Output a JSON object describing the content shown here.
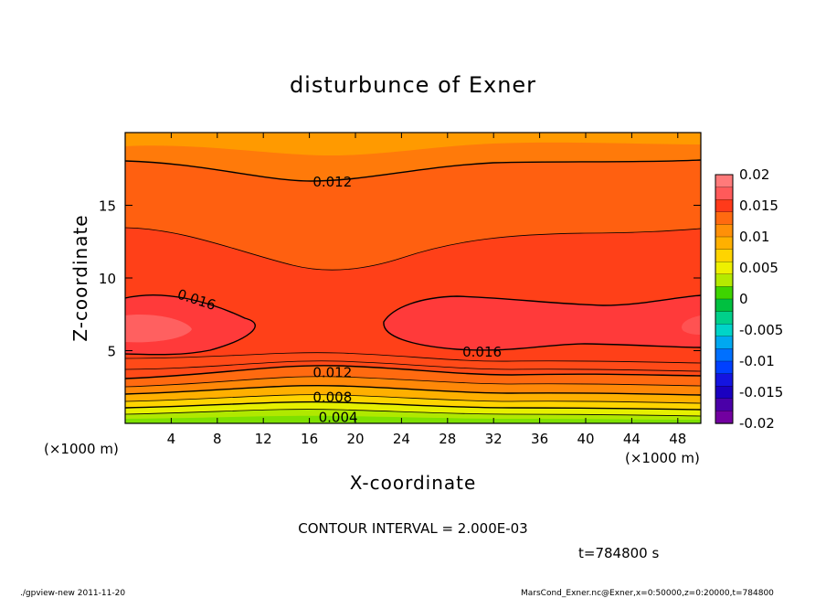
{
  "chart_data": {
    "type": "heatmap",
    "title": "disturbunce of Exner",
    "xlabel": "X-coordinate",
    "ylabel": "Z-coordinate",
    "x_unit": "(×1000 m)",
    "z_unit": "(×1000 m)",
    "xlim": [
      0,
      50
    ],
    "ylim": [
      0,
      20
    ],
    "x_ticks": [
      "4",
      "8",
      "12",
      "16",
      "20",
      "24",
      "28",
      "32",
      "36",
      "40",
      "44",
      "48"
    ],
    "y_ticks": [
      "5",
      "10",
      "15"
    ],
    "contour_interval_text": "CONTOUR INTERVAL = 2.000E-03",
    "time_text": "t=784800 s",
    "contour_labels": [
      {
        "text": "0.012",
        "x": 18,
        "z": 16.6
      },
      {
        "text": "0.016",
        "x": 6.2,
        "z": 8.5
      },
      {
        "text": "0.016",
        "x": 31,
        "z": 4.9
      },
      {
        "text": "0.012",
        "x": 18,
        "z": 3.5
      },
      {
        "text": "0.008",
        "x": 18,
        "z": 1.8
      },
      {
        "text": "0.004",
        "x": 18.5,
        "z": 0.4
      }
    ],
    "colorbar": {
      "labels": [
        "0.02",
        "0.015",
        "0.01",
        "0.005",
        "0",
        "-0.005",
        "-0.01",
        "-0.015",
        "-0.02"
      ],
      "colors": [
        "#ff7a7a",
        "#ff5a5a",
        "#ff3a1a",
        "#ff6a10",
        "#ff9008",
        "#ffb000",
        "#ffd400",
        "#eef000",
        "#b4ea00",
        "#3ed400",
        "#00c040",
        "#00d08a",
        "#00d4c8",
        "#00a8f0",
        "#0070ff",
        "#0040ff",
        "#1414e0",
        "#1a00c0",
        "#4a00a8",
        "#7200a0"
      ]
    }
  },
  "footer": {
    "left": "./gpview-new   2011-11-20",
    "right": "MarsCond_Exner.nc@Exner,x=0:50000,z=0:20000,t=784800"
  }
}
